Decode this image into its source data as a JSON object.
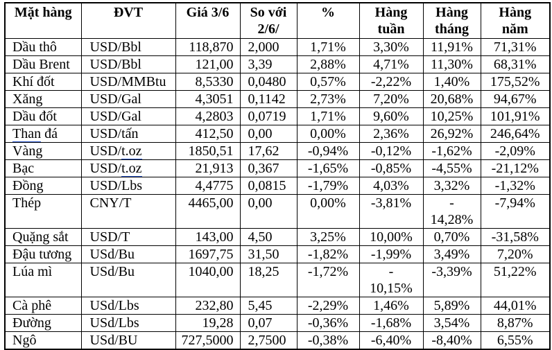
{
  "colors": {
    "background": "#ffffff",
    "border": "#000000",
    "text": "#000000",
    "grammar_underline_blue": "#2f5bd0"
  },
  "table": {
    "columns": [
      {
        "id": "item",
        "label": "Mặt hàng"
      },
      {
        "id": "unit",
        "label": "ĐVT"
      },
      {
        "id": "price",
        "label": "Giá 3/6"
      },
      {
        "id": "change",
        "label": "So với\n2/6/"
      },
      {
        "id": "pct",
        "label": "%"
      },
      {
        "id": "weekly",
        "label": "Hàng\ntuần"
      },
      {
        "id": "monthly",
        "label": "Hàng\ntháng"
      },
      {
        "id": "yearly",
        "label": "Hàng\nnăm"
      }
    ],
    "rows": [
      {
        "cells": [
          "Dầu thô",
          "USD/Bbl",
          "118,870",
          "2,000",
          "1,71%",
          "3,30%",
          "11,91%",
          "71,31%"
        ],
        "tall": false
      },
      {
        "cells": [
          "Dầu Brent",
          "USD/Bbl",
          "121,00",
          "3,39",
          "2,88%",
          "4,71%",
          "11,30%",
          "68,31%"
        ],
        "tall": false
      },
      {
        "cells": [
          "Khí đốt",
          "USD/MMBtu",
          "8,5330",
          "0,0480",
          "0,57%",
          "-2,22%",
          "1,40%",
          "175,52%"
        ],
        "tall": false
      },
      {
        "cells": [
          "Xăng",
          "USD/Gal",
          "4,3051",
          "0,1142",
          "2,73%",
          "7,20%",
          "20,68%",
          "94,67%"
        ],
        "tall": false
      },
      {
        "cells": [
          "Dầu đốt",
          "USD/Gal",
          "4,2803",
          "0,0719",
          "1,71%",
          "9,60%",
          "10,25%",
          "101,91%"
        ],
        "tall": false
      },
      {
        "cells": [
          "Than đá",
          "USD/tấn",
          "412,50",
          "0,00",
          "0,00%",
          "2,36%",
          "26,92%",
          "246,64%"
        ],
        "tall": false,
        "marks": {
          "0": "Than"
        }
      },
      {
        "cells": [
          "Vàng",
          "USD/t.oz",
          "1850,51",
          "17,62",
          "-0,94%",
          "-0,12%",
          "-1,62%",
          "-2,09%"
        ],
        "tall": false,
        "marks": {
          "1": "t.oz"
        }
      },
      {
        "cells": [
          "Bạc",
          "USD/t.oz",
          "21,913",
          "0,367",
          "-1,65%",
          "-0,85%",
          "-4,55%",
          "-21,12%"
        ],
        "tall": false,
        "marks": {
          "1": "t.oz"
        }
      },
      {
        "cells": [
          "Đồng",
          "USD/Lbs",
          "4,4775",
          "0,0815",
          "-1,79%",
          "4,03%",
          "3,32%",
          "-1,32%"
        ],
        "tall": false
      },
      {
        "cells": [
          "Thép",
          "CNY/T",
          "4465,00",
          "0,00",
          "0,00%",
          "-3,81%",
          "-\n14,28%",
          "-7,94%"
        ],
        "tall": true
      },
      {
        "cells": [
          "Quặng sắt",
          "USD/T",
          "143,00",
          "4,50",
          "3,25%",
          "10,00%",
          "0,70%",
          "-31,58%"
        ],
        "tall": false
      },
      {
        "cells": [
          "Đậu tương",
          "USd/Bu",
          "1697,75",
          "31,50",
          "-1,82%",
          "-1,99%",
          "3,49%",
          "7,20%"
        ],
        "tall": false
      },
      {
        "cells": [
          "Lúa mì",
          "USd/Bu",
          "1040,00",
          "18,25",
          "-1,72%",
          "-\n10,15%",
          "-3,39%",
          "51,22%"
        ],
        "tall": true
      },
      {
        "cells": [
          "Cà phê",
          "USd/Lbs",
          "232,80",
          "5,45",
          "-2,29%",
          "1,46%",
          "5,89%",
          "44,01%"
        ],
        "tall": false
      },
      {
        "cells": [
          "Đường",
          "USd/Lbs",
          "19,28",
          "0,07",
          "-0,36%",
          "-1,68%",
          "3,54%",
          "8,87%"
        ],
        "tall": false
      },
      {
        "cells": [
          "Ngô",
          "USd/BU",
          "727,5000",
          "2,7500",
          "-0,38%",
          "-6,40%",
          "-8,40%",
          "6,55%"
        ],
        "tall": false
      }
    ]
  }
}
